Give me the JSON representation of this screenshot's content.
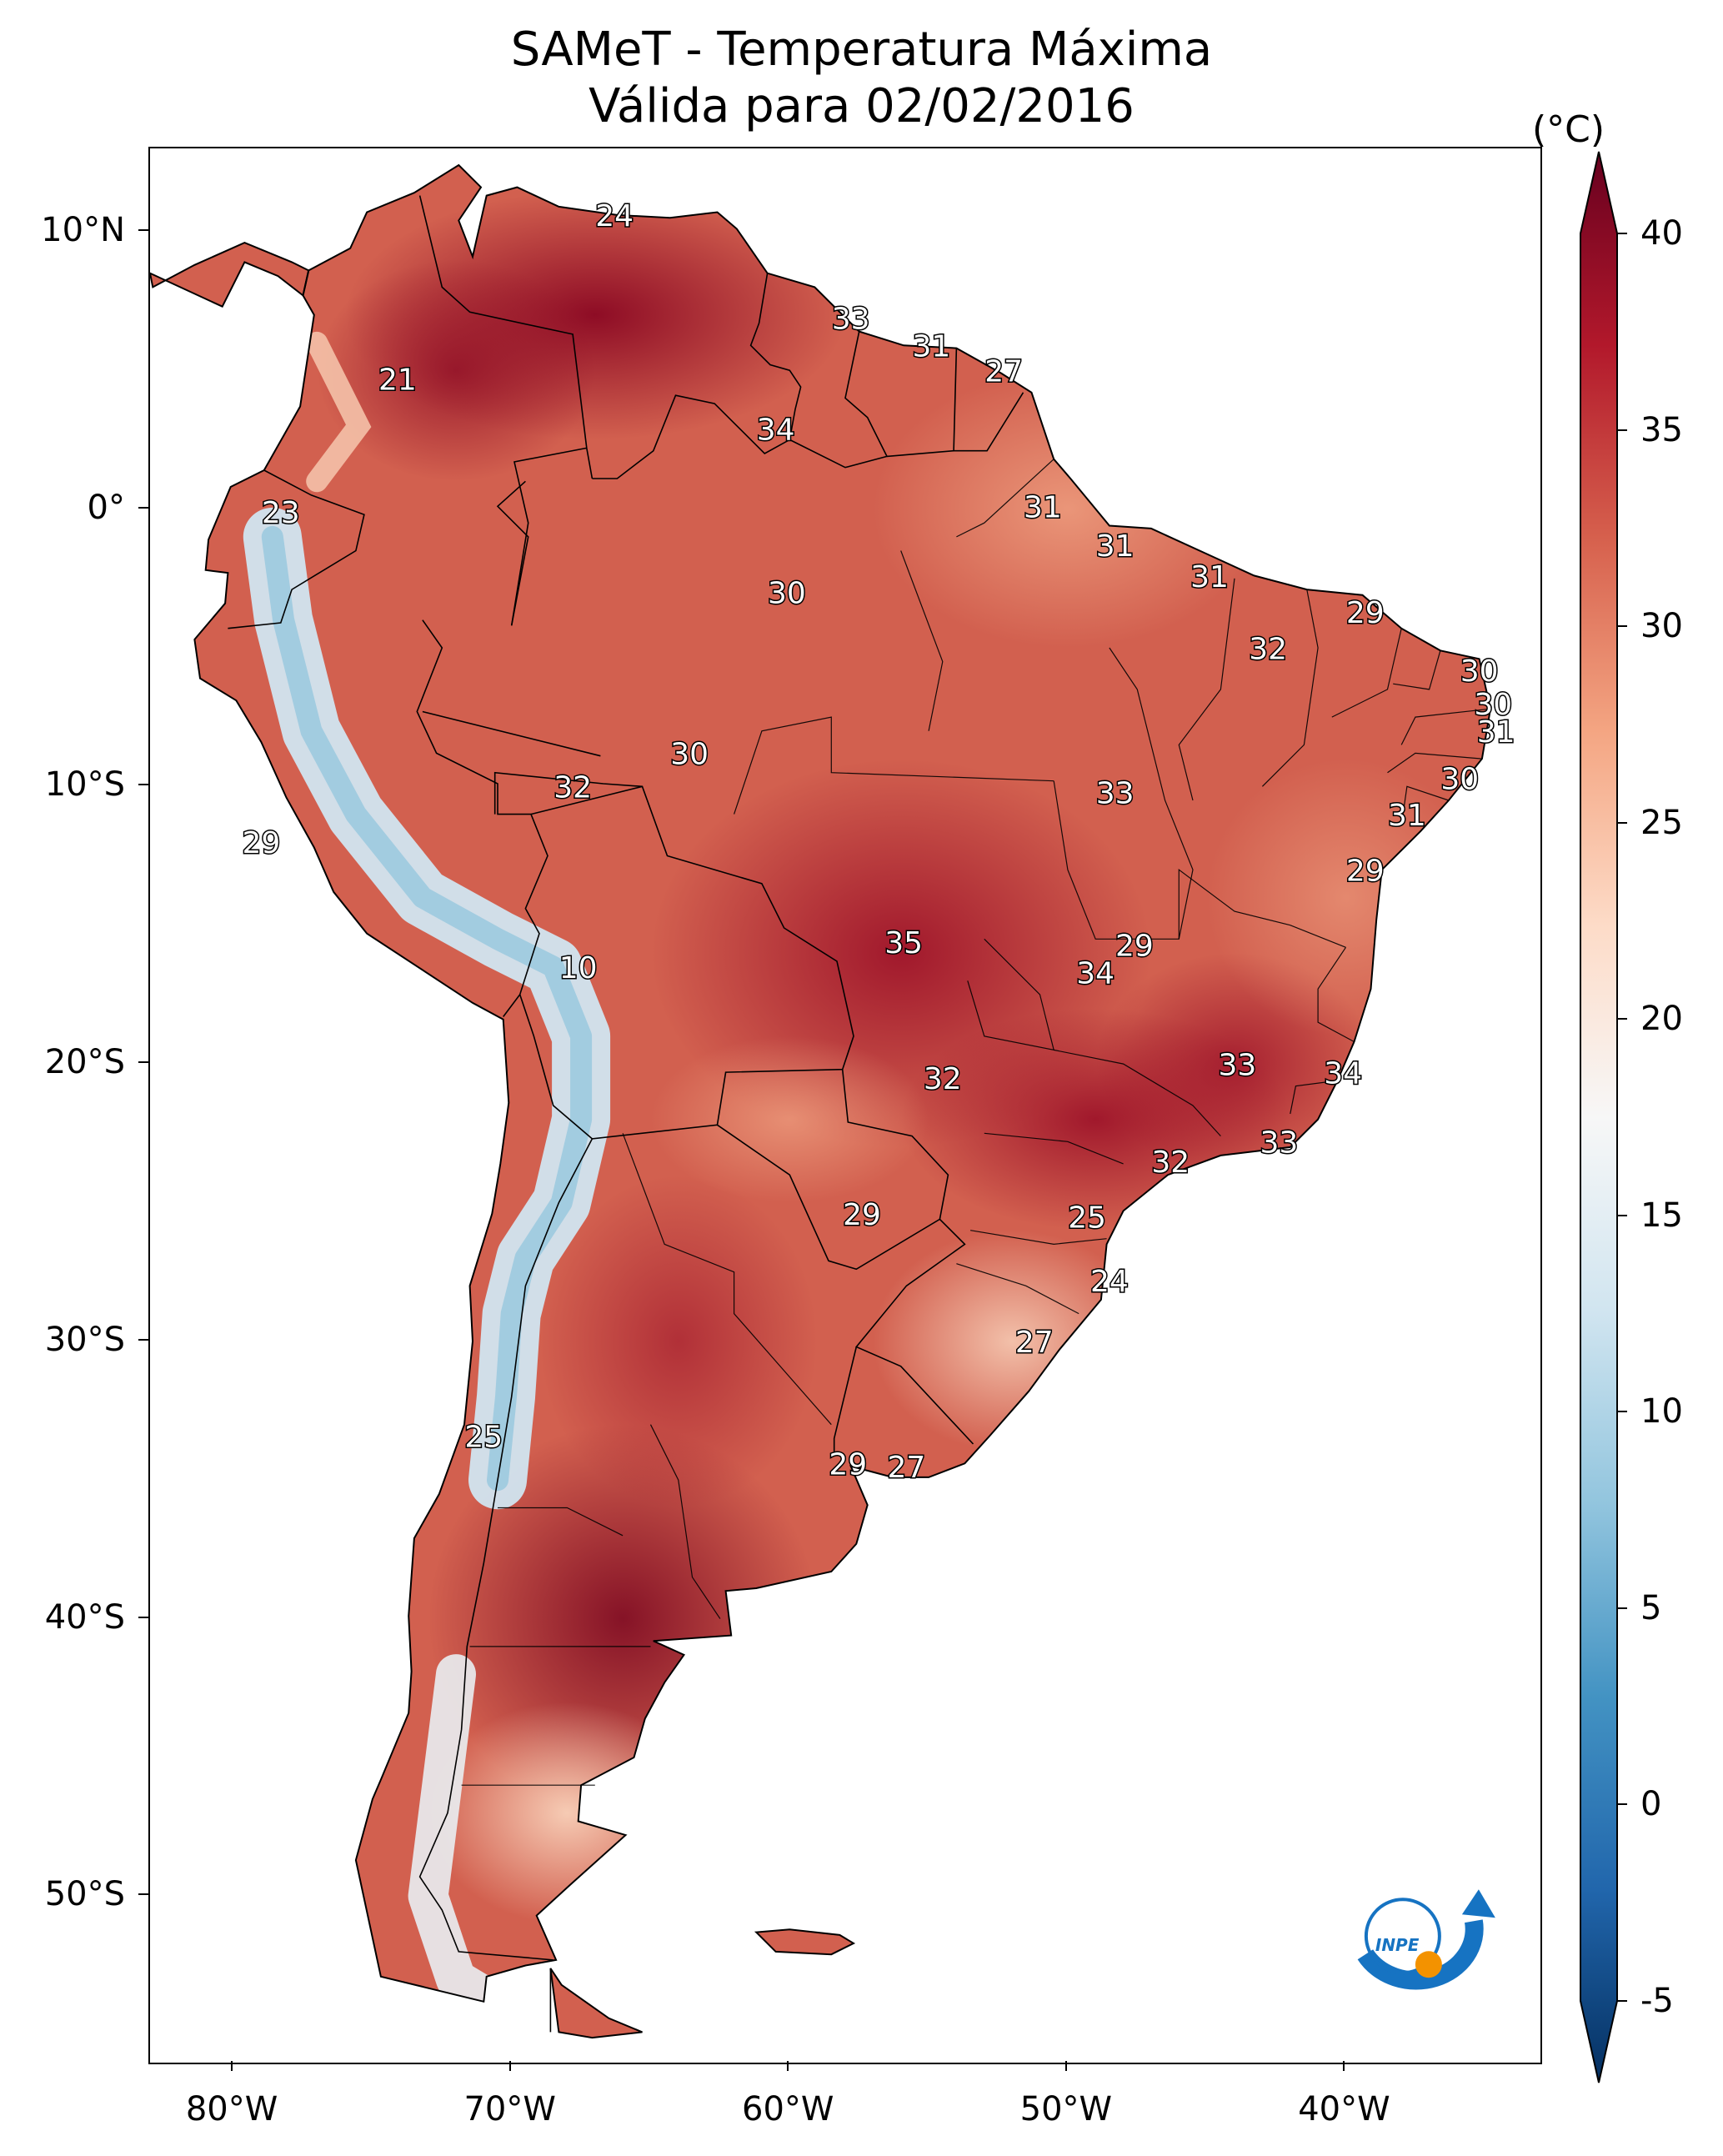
{
  "title": {
    "line1": "SAMeT - Temperatura Máxima",
    "line2": "Válida para 02/02/2016"
  },
  "map": {
    "lon_range": [
      -83,
      -33
    ],
    "lat_range": [
      -56,
      13
    ],
    "lat_ticks": [
      "10°N",
      "0°",
      "10°S",
      "20°S",
      "30°S",
      "40°S",
      "50°S"
    ],
    "lon_ticks": [
      "80°W",
      "70°W",
      "60°W",
      "50°W",
      "40°W"
    ],
    "lat_values": [
      10,
      0,
      -10,
      -20,
      -30,
      -40,
      -50
    ],
    "lon_values": [
      -80,
      -70,
      -60,
      -50,
      -40
    ]
  },
  "colorbar": {
    "unit": "(°C)",
    "min": -5,
    "max": 40,
    "ticks": [
      "40",
      "35",
      "30",
      "25",
      "20",
      "15",
      "10",
      "5",
      "0",
      "-5"
    ],
    "tick_values": [
      40,
      35,
      30,
      25,
      20,
      15,
      10,
      5,
      0,
      -5
    ],
    "colors": [
      "#053061",
      "#2166ac",
      "#4393c3",
      "#92c5de",
      "#d1e5f0",
      "#f7f7f7",
      "#fddbc7",
      "#f4a582",
      "#d6604d",
      "#b2182b",
      "#67001f"
    ]
  },
  "contour_labels": [
    {
      "text": "24",
      "lon": -66.3,
      "lat": 10.5
    },
    {
      "text": "21",
      "lon": -74.1,
      "lat": 4.6
    },
    {
      "text": "23",
      "lon": -78.3,
      "lat": -0.2
    },
    {
      "text": "33",
      "lon": -57.8,
      "lat": 6.8
    },
    {
      "text": "31",
      "lon": -54.9,
      "lat": 5.8
    },
    {
      "text": "27",
      "lon": -52.3,
      "lat": 4.9
    },
    {
      "text": "34",
      "lon": -60.5,
      "lat": 2.8
    },
    {
      "text": "31",
      "lon": -50.9,
      "lat": 0.0
    },
    {
      "text": "31",
      "lon": -48.3,
      "lat": -1.4
    },
    {
      "text": "30",
      "lon": -60.1,
      "lat": -3.1
    },
    {
      "text": "31",
      "lon": -44.9,
      "lat": -2.5
    },
    {
      "text": "29",
      "lon": -39.3,
      "lat": -3.8
    },
    {
      "text": "32",
      "lon": -42.8,
      "lat": -5.1
    },
    {
      "text": "30",
      "lon": -35.2,
      "lat": -5.9
    },
    {
      "text": "30",
      "lon": -34.7,
      "lat": -7.1
    },
    {
      "text": "31",
      "lon": -34.6,
      "lat": -8.1
    },
    {
      "text": "30",
      "lon": -35.9,
      "lat": -9.8
    },
    {
      "text": "30",
      "lon": -63.6,
      "lat": -8.9
    },
    {
      "text": "32",
      "lon": -67.8,
      "lat": -10.1
    },
    {
      "text": "33",
      "lon": -48.3,
      "lat": -10.3
    },
    {
      "text": "31",
      "lon": -37.8,
      "lat": -11.1
    },
    {
      "text": "29",
      "lon": -79.0,
      "lat": -12.1
    },
    {
      "text": "29",
      "lon": -39.3,
      "lat": -13.1
    },
    {
      "text": "35",
      "lon": -55.9,
      "lat": -15.7
    },
    {
      "text": "29",
      "lon": -47.6,
      "lat": -15.8
    },
    {
      "text": "34",
      "lon": -49.0,
      "lat": -16.8
    },
    {
      "text": "10",
      "lon": -67.6,
      "lat": -16.6
    },
    {
      "text": "33",
      "lon": -43.9,
      "lat": -20.1
    },
    {
      "text": "34",
      "lon": -40.1,
      "lat": -20.4
    },
    {
      "text": "32",
      "lon": -54.5,
      "lat": -20.6
    },
    {
      "text": "33",
      "lon": -42.4,
      "lat": -22.9
    },
    {
      "text": "32",
      "lon": -46.3,
      "lat": -23.6
    },
    {
      "text": "29",
      "lon": -57.4,
      "lat": -25.5
    },
    {
      "text": "25",
      "lon": -49.3,
      "lat": -25.6
    },
    {
      "text": "24",
      "lon": -48.5,
      "lat": -27.9
    },
    {
      "text": "27",
      "lon": -51.2,
      "lat": -30.1
    },
    {
      "text": "25",
      "lon": -71.0,
      "lat": -33.5
    },
    {
      "text": "29",
      "lon": -57.9,
      "lat": -34.5
    },
    {
      "text": "27",
      "lon": -55.8,
      "lat": -34.6
    }
  ],
  "logo": {
    "text": "INPE",
    "colors": {
      "blue": "#1673c2",
      "orange": "#f39200"
    }
  },
  "palette": {
    "border": "#000000",
    "ocean": "#ffffff"
  }
}
